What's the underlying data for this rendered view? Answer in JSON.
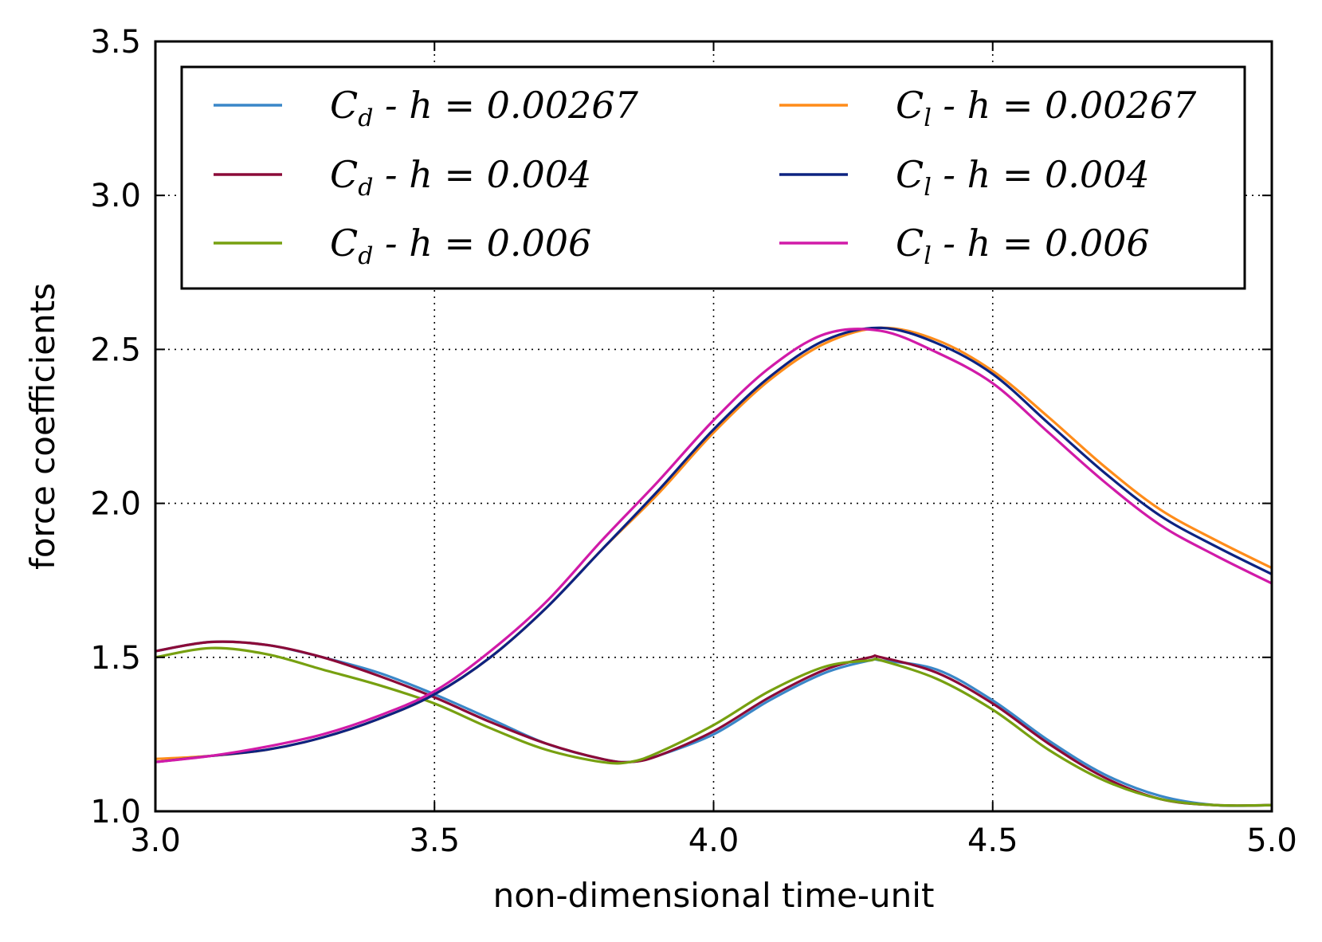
{
  "chart_data": {
    "type": "line",
    "title": "",
    "xlabel": "non-dimensional time-unit",
    "ylabel": "force coefficients",
    "xlim": [
      3.0,
      5.0
    ],
    "ylim": [
      1.0,
      3.5
    ],
    "xticks": [
      "3.0",
      "3.5",
      "4.0",
      "4.5",
      "5.0"
    ],
    "yticks": [
      "1.0",
      "1.5",
      "2.0",
      "2.5",
      "3.0",
      "3.5"
    ],
    "grid": true,
    "legend_position": "top",
    "legend_columns": 2,
    "series": [
      {
        "name": "C_d - h = 0.00267",
        "legend": {
          "sym": "C",
          "sub": "d",
          "rest": " - h = 0.00267"
        },
        "color": "#3a87c8",
        "x": [
          3.0,
          3.1,
          3.2,
          3.3,
          3.4,
          3.5,
          3.6,
          3.7,
          3.8,
          3.85,
          3.9,
          4.0,
          4.1,
          4.2,
          4.28,
          4.3,
          4.4,
          4.5,
          4.6,
          4.7,
          4.8,
          4.9,
          5.0
        ],
        "y": [
          1.52,
          1.55,
          1.54,
          1.5,
          1.45,
          1.38,
          1.3,
          1.22,
          1.17,
          1.16,
          1.18,
          1.25,
          1.36,
          1.45,
          1.49,
          1.49,
          1.46,
          1.36,
          1.23,
          1.12,
          1.05,
          1.02,
          1.02
        ]
      },
      {
        "name": "C_d - h = 0.004",
        "legend": {
          "sym": "C",
          "sub": "d",
          "rest": " - h = 0.004"
        },
        "color": "#8b0a38",
        "x": [
          3.0,
          3.1,
          3.2,
          3.3,
          3.4,
          3.5,
          3.6,
          3.7,
          3.8,
          3.85,
          3.9,
          4.0,
          4.1,
          4.2,
          4.28,
          4.3,
          4.4,
          4.5,
          4.6,
          4.7,
          4.8,
          4.9,
          5.0
        ],
        "y": [
          1.52,
          1.55,
          1.54,
          1.5,
          1.44,
          1.37,
          1.29,
          1.22,
          1.17,
          1.16,
          1.18,
          1.26,
          1.37,
          1.46,
          1.5,
          1.5,
          1.45,
          1.35,
          1.22,
          1.11,
          1.04,
          1.02,
          1.02
        ]
      },
      {
        "name": "C_d - h = 0.006",
        "legend": {
          "sym": "C",
          "sub": "d",
          "rest": " - h = 0.006"
        },
        "color": "#77a010",
        "x": [
          3.0,
          3.1,
          3.2,
          3.3,
          3.4,
          3.5,
          3.6,
          3.7,
          3.8,
          3.85,
          3.9,
          4.0,
          4.1,
          4.2,
          4.28,
          4.3,
          4.4,
          4.5,
          4.6,
          4.7,
          4.8,
          4.9,
          5.0
        ],
        "y": [
          1.5,
          1.53,
          1.51,
          1.46,
          1.41,
          1.35,
          1.27,
          1.2,
          1.16,
          1.16,
          1.19,
          1.28,
          1.39,
          1.47,
          1.49,
          1.49,
          1.43,
          1.33,
          1.2,
          1.1,
          1.04,
          1.02,
          1.02
        ]
      },
      {
        "name": "C_l - h = 0.00267",
        "legend": {
          "sym": "C",
          "sub": "l",
          "rest": " - h = 0.00267"
        },
        "color": "#ff8c1a",
        "x": [
          3.0,
          3.1,
          3.2,
          3.3,
          3.4,
          3.5,
          3.6,
          3.7,
          3.8,
          3.9,
          4.0,
          4.1,
          4.2,
          4.3,
          4.4,
          4.5,
          4.6,
          4.7,
          4.8,
          4.9,
          5.0
        ],
        "y": [
          1.17,
          1.18,
          1.2,
          1.24,
          1.3,
          1.38,
          1.5,
          1.66,
          1.85,
          2.03,
          2.23,
          2.4,
          2.52,
          2.57,
          2.53,
          2.43,
          2.28,
          2.12,
          1.98,
          1.88,
          1.79
        ]
      },
      {
        "name": "C_l - h = 0.004",
        "legend": {
          "sym": "C",
          "sub": "l",
          "rest": " - h = 0.004"
        },
        "color": "#0d2381",
        "x": [
          3.0,
          3.1,
          3.2,
          3.3,
          3.4,
          3.5,
          3.6,
          3.7,
          3.8,
          3.9,
          4.0,
          4.1,
          4.2,
          4.3,
          4.4,
          4.5,
          4.6,
          4.7,
          4.8,
          4.9,
          5.0
        ],
        "y": [
          1.16,
          1.18,
          1.2,
          1.24,
          1.3,
          1.38,
          1.5,
          1.66,
          1.85,
          2.04,
          2.24,
          2.41,
          2.53,
          2.57,
          2.52,
          2.42,
          2.26,
          2.1,
          1.96,
          1.86,
          1.77
        ]
      },
      {
        "name": "C_l - h = 0.006",
        "legend": {
          "sym": "C",
          "sub": "l",
          "rest": " - h = 0.006"
        },
        "color": "#d11aa8",
        "x": [
          3.0,
          3.1,
          3.2,
          3.3,
          3.4,
          3.5,
          3.6,
          3.7,
          3.8,
          3.9,
          4.0,
          4.1,
          4.2,
          4.3,
          4.4,
          4.5,
          4.6,
          4.7,
          4.8,
          4.9,
          5.0
        ],
        "y": [
          1.16,
          1.18,
          1.21,
          1.25,
          1.31,
          1.39,
          1.52,
          1.68,
          1.88,
          2.07,
          2.27,
          2.44,
          2.55,
          2.56,
          2.49,
          2.39,
          2.23,
          2.07,
          1.93,
          1.83,
          1.74
        ]
      }
    ]
  }
}
